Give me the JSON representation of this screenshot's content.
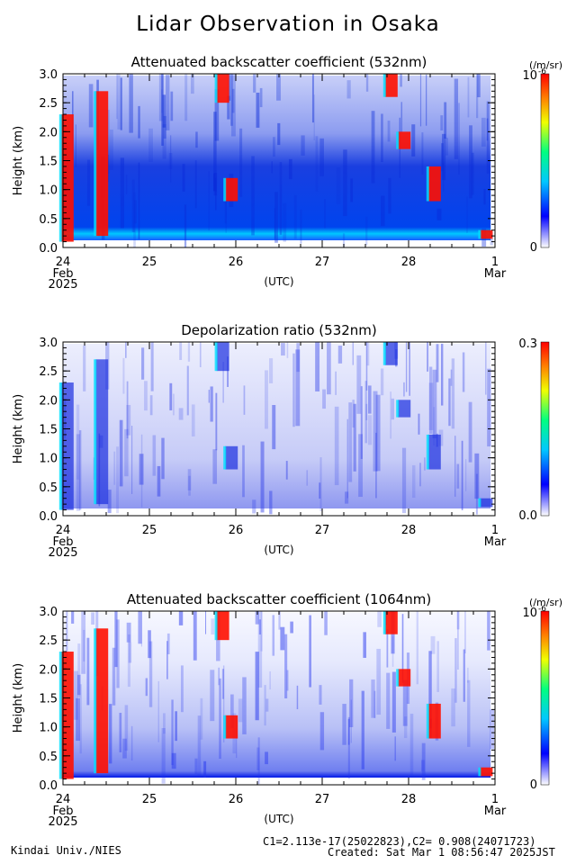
{
  "page": {
    "title": "Lidar Observation in Osaka"
  },
  "footer": {
    "left": "Kindai Univ./NIES",
    "calib": "C1=2.113e-17(25022823),C2= 0.908(24071723)",
    "created": "Created: Sat Mar  1 08:56:47 2025JST"
  },
  "chart_data": [
    {
      "type": "heatmap",
      "title": "Attenuated backscatter coefficient (532nm)",
      "ylabel": "Height (km)",
      "xlabel": "(UTC)",
      "ylim": [
        0.0,
        3.0
      ],
      "yticks": [
        "0.0",
        "0.5",
        "1.0",
        "1.5",
        "2.0",
        "2.5",
        "3.0"
      ],
      "xticks": [
        {
          "day": "24",
          "sub": [
            "Feb",
            "2025"
          ]
        },
        {
          "day": "25",
          "sub": []
        },
        {
          "day": "26",
          "sub": []
        },
        {
          "day": "27",
          "sub": []
        },
        {
          "day": "28",
          "sub": []
        },
        {
          "day": "1",
          "sub": [
            "Mar"
          ]
        }
      ],
      "colorbar": {
        "top": "10",
        "top_exp": "-6",
        "bottom": "0",
        "unit": "(/m/sr)"
      },
      "cloud_layers": [
        {
          "day": 24.05,
          "bottom": 0.1,
          "top": 2.3,
          "strength": "high"
        },
        {
          "day": 24.45,
          "bottom": 0.2,
          "top": 2.7,
          "strength": "high"
        },
        {
          "day": 25.85,
          "bottom": 2.5,
          "top": 3.0,
          "strength": "high"
        },
        {
          "day": 25.95,
          "bottom": 0.8,
          "top": 1.2,
          "strength": "high"
        },
        {
          "day": 27.8,
          "bottom": 2.6,
          "top": 3.0,
          "strength": "high"
        },
        {
          "day": 27.95,
          "bottom": 1.7,
          "top": 2.0,
          "strength": "high"
        },
        {
          "day": 28.3,
          "bottom": 0.8,
          "top": 1.4,
          "strength": "high"
        },
        {
          "day": 28.9,
          "bottom": 0.15,
          "top": 0.3,
          "strength": "high"
        }
      ]
    },
    {
      "type": "heatmap",
      "title": "Depolarization ratio (532nm)",
      "ylabel": "Height (km)",
      "xlabel": "(UTC)",
      "ylim": [
        0.0,
        3.0
      ],
      "yticks": [
        "0.0",
        "0.5",
        "1.0",
        "1.5",
        "2.0",
        "2.5",
        "3.0"
      ],
      "xticks": [
        {
          "day": "24",
          "sub": [
            "Feb",
            "2025"
          ]
        },
        {
          "day": "25",
          "sub": []
        },
        {
          "day": "26",
          "sub": []
        },
        {
          "day": "27",
          "sub": []
        },
        {
          "day": "28",
          "sub": []
        },
        {
          "day": "1",
          "sub": [
            "Mar"
          ]
        }
      ],
      "colorbar": {
        "top": "0.3",
        "top_exp": "",
        "bottom": "0.0",
        "unit": ""
      }
    },
    {
      "type": "heatmap",
      "title": "Attenuated backscatter coefficient (1064nm)",
      "ylabel": "Height (km)",
      "xlabel": "(UTC)",
      "ylim": [
        0.0,
        3.0
      ],
      "yticks": [
        "0.0",
        "0.5",
        "1.0",
        "1.5",
        "2.0",
        "2.5",
        "3.0"
      ],
      "xticks": [
        {
          "day": "24",
          "sub": [
            "Feb",
            "2025"
          ]
        },
        {
          "day": "25",
          "sub": []
        },
        {
          "day": "26",
          "sub": []
        },
        {
          "day": "27",
          "sub": []
        },
        {
          "day": "28",
          "sub": []
        },
        {
          "day": "1",
          "sub": [
            "Mar"
          ]
        }
      ],
      "colorbar": {
        "top": "10",
        "top_exp": "-6",
        "bottom": "0",
        "unit": "(/m/sr)"
      }
    }
  ]
}
